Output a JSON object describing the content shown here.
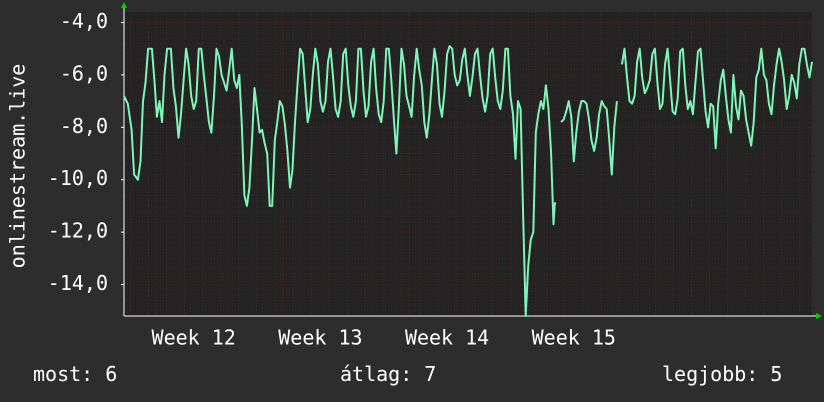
{
  "chart_data": {
    "type": "line",
    "ylabel": "onlinestream.live",
    "xlabel": "",
    "title": "",
    "ylim": [
      -15.2,
      -3.6
    ],
    "xlim": [
      10.55,
      15.98
    ],
    "y_ticks": [
      "-4,0",
      "-6,0",
      "-8,0",
      "-10,0",
      "-12,0",
      "-14,0"
    ],
    "y_tick_values": [
      -4,
      -6,
      -8,
      -10,
      -12,
      -14
    ],
    "x_ticks": [
      "Week 12",
      "Week 13",
      "Week 14",
      "Week 15"
    ],
    "x_tick_values": [
      11.1,
      12.1,
      13.1,
      14.1
    ],
    "grid": true,
    "colors": {
      "background": "#2d2d2d",
      "plot_background": "#232323",
      "line": "#7ff5b8",
      "grid_major": "#5a2020",
      "grid_minor": "#3e2a2a",
      "axis": "#ffffff",
      "arrow": "#00d000"
    },
    "series": [
      {
        "values": [
          [
            10.55,
            -6.8
          ],
          [
            10.58,
            -7.1
          ],
          [
            10.61,
            -8.1
          ],
          [
            10.63,
            -9.8
          ],
          [
            10.66,
            -10.0
          ],
          [
            10.68,
            -9.3
          ],
          [
            10.7,
            -7.0
          ],
          [
            10.72,
            -6.3
          ],
          [
            10.74,
            -5.0
          ],
          [
            10.77,
            -5.0
          ],
          [
            10.79,
            -6.2
          ],
          [
            10.81,
            -7.6
          ],
          [
            10.83,
            -7.0
          ],
          [
            10.85,
            -7.8
          ],
          [
            10.87,
            -6.0
          ],
          [
            10.89,
            -5.0
          ],
          [
            10.92,
            -5.0
          ],
          [
            10.94,
            -6.5
          ],
          [
            10.96,
            -7.2
          ],
          [
            10.98,
            -8.4
          ],
          [
            11.0,
            -7.5
          ],
          [
            11.02,
            -6.2
          ],
          [
            11.04,
            -5.0
          ],
          [
            11.06,
            -5.6
          ],
          [
            11.08,
            -6.8
          ],
          [
            11.1,
            -7.3
          ],
          [
            11.12,
            -7.0
          ],
          [
            11.14,
            -5.0
          ],
          [
            11.16,
            -5.0
          ],
          [
            11.18,
            -6.0
          ],
          [
            11.2,
            -6.9
          ],
          [
            11.22,
            -7.8
          ],
          [
            11.24,
            -8.2
          ],
          [
            11.26,
            -6.8
          ],
          [
            11.28,
            -5.0
          ],
          [
            11.3,
            -5.3
          ],
          [
            11.32,
            -6.0
          ],
          [
            11.34,
            -6.3
          ],
          [
            11.36,
            -6.6
          ],
          [
            11.38,
            -5.8
          ],
          [
            11.4,
            -5.0
          ],
          [
            11.42,
            -6.2
          ],
          [
            11.44,
            -6.5
          ],
          [
            11.46,
            -6.0
          ],
          [
            11.48,
            -7.9
          ],
          [
            11.5,
            -10.6
          ],
          [
            11.52,
            -11.0
          ],
          [
            11.54,
            -10.3
          ],
          [
            11.56,
            -8.5
          ],
          [
            11.58,
            -6.5
          ],
          [
            11.6,
            -7.3
          ],
          [
            11.62,
            -8.2
          ],
          [
            11.64,
            -8.1
          ],
          [
            11.66,
            -8.6
          ],
          [
            11.68,
            -9.0
          ],
          [
            11.7,
            -11.0
          ],
          [
            11.72,
            -11.0
          ],
          [
            11.74,
            -8.5
          ],
          [
            11.76,
            -7.8
          ],
          [
            11.78,
            -7.0
          ],
          [
            11.8,
            -7.2
          ],
          [
            11.82,
            -7.9
          ],
          [
            11.84,
            -8.9
          ],
          [
            11.86,
            -10.3
          ],
          [
            11.88,
            -9.6
          ],
          [
            11.9,
            -7.8
          ],
          [
            11.92,
            -6.3
          ],
          [
            11.94,
            -5.0
          ],
          [
            11.96,
            -5.2
          ],
          [
            11.98,
            -6.5
          ],
          [
            12.0,
            -7.8
          ],
          [
            12.02,
            -7.3
          ],
          [
            12.04,
            -6.0
          ],
          [
            12.06,
            -5.0
          ],
          [
            12.08,
            -5.6
          ],
          [
            12.1,
            -7.0
          ],
          [
            12.12,
            -7.4
          ],
          [
            12.14,
            -7.0
          ],
          [
            12.16,
            -5.5
          ],
          [
            12.18,
            -5.0
          ],
          [
            12.2,
            -6.1
          ],
          [
            12.22,
            -7.3
          ],
          [
            12.24,
            -7.6
          ],
          [
            12.26,
            -7.0
          ],
          [
            12.28,
            -5.2
          ],
          [
            12.3,
            -5.0
          ],
          [
            12.32,
            -6.4
          ],
          [
            12.34,
            -7.2
          ],
          [
            12.36,
            -7.6
          ],
          [
            12.38,
            -7.0
          ],
          [
            12.4,
            -5.0
          ],
          [
            12.42,
            -5.0
          ],
          [
            12.44,
            -6.6
          ],
          [
            12.46,
            -7.6
          ],
          [
            12.48,
            -7.2
          ],
          [
            12.5,
            -5.5
          ],
          [
            12.52,
            -5.0
          ],
          [
            12.54,
            -6.5
          ],
          [
            12.56,
            -7.5
          ],
          [
            12.58,
            -7.8
          ],
          [
            12.6,
            -7.0
          ],
          [
            12.62,
            -5.0
          ],
          [
            12.64,
            -5.0
          ],
          [
            12.66,
            -6.2
          ],
          [
            12.68,
            -7.7
          ],
          [
            12.7,
            -9.0
          ],
          [
            12.72,
            -7.2
          ],
          [
            12.74,
            -5.0
          ],
          [
            12.76,
            -5.6
          ],
          [
            12.78,
            -6.8
          ],
          [
            12.8,
            -7.2
          ],
          [
            12.82,
            -7.6
          ],
          [
            12.84,
            -6.0
          ],
          [
            12.86,
            -5.0
          ],
          [
            12.88,
            -5.8
          ],
          [
            12.9,
            -6.4
          ],
          [
            12.92,
            -7.8
          ],
          [
            12.94,
            -8.4
          ],
          [
            12.96,
            -7.5
          ],
          [
            12.98,
            -6.2
          ],
          [
            13.0,
            -5.0
          ],
          [
            13.02,
            -5.6
          ],
          [
            13.04,
            -7.1
          ],
          [
            13.06,
            -7.6
          ],
          [
            13.08,
            -6.6
          ],
          [
            13.1,
            -5.2
          ],
          [
            13.12,
            -4.9
          ],
          [
            13.14,
            -5.0
          ],
          [
            13.16,
            -6.0
          ],
          [
            13.18,
            -6.4
          ],
          [
            13.2,
            -6.2
          ],
          [
            13.22,
            -5.4
          ],
          [
            13.24,
            -5.0
          ],
          [
            13.26,
            -6.0
          ],
          [
            13.28,
            -6.8
          ],
          [
            13.3,
            -6.1
          ],
          [
            13.32,
            -5.2
          ],
          [
            13.34,
            -5.0
          ],
          [
            13.36,
            -6.0
          ],
          [
            13.38,
            -6.9
          ],
          [
            13.4,
            -7.4
          ],
          [
            13.42,
            -6.8
          ],
          [
            13.44,
            -5.2
          ],
          [
            13.46,
            -5.0
          ],
          [
            13.48,
            -6.1
          ],
          [
            13.5,
            -7.0
          ],
          [
            13.52,
            -7.3
          ],
          [
            13.54,
            -6.6
          ],
          [
            13.56,
            -5.0
          ],
          [
            13.58,
            -5.0
          ],
          [
            13.6,
            -6.8
          ],
          [
            13.62,
            -7.5
          ],
          [
            13.64,
            -9.2
          ],
          [
            13.66,
            -7.0
          ],
          [
            13.68,
            -7.3
          ],
          [
            13.7,
            -11.3
          ],
          [
            13.72,
            -15.2
          ],
          [
            13.74,
            -13.3
          ],
          [
            13.76,
            -12.3
          ],
          [
            13.78,
            -12.0
          ],
          [
            13.8,
            -8.2
          ],
          [
            13.82,
            -7.5
          ],
          [
            13.84,
            -7.0
          ],
          [
            13.86,
            -7.3
          ],
          [
            13.88,
            -6.4
          ],
          [
            13.9,
            -7.3
          ],
          [
            13.92,
            -8.9
          ],
          [
            13.94,
            -11.7
          ],
          [
            13.95,
            -10.9
          ],
          [
            13.96,
            -10.9
          ],
          [
            13.98,
            null
          ],
          [
            14.0,
            -7.8
          ],
          [
            14.02,
            -7.7
          ],
          [
            14.04,
            -7.4
          ],
          [
            14.06,
            -7.0
          ],
          [
            14.08,
            -7.6
          ],
          [
            14.1,
            -9.3
          ],
          [
            14.12,
            -8.2
          ],
          [
            14.14,
            -7.4
          ],
          [
            14.16,
            -7.0
          ],
          [
            14.18,
            -7.0
          ],
          [
            14.2,
            -7.1
          ],
          [
            14.22,
            -7.7
          ],
          [
            14.24,
            -8.5
          ],
          [
            14.26,
            -8.9
          ],
          [
            14.28,
            -8.4
          ],
          [
            14.3,
            -7.5
          ],
          [
            14.32,
            -7.0
          ],
          [
            14.34,
            -7.2
          ],
          [
            14.36,
            -7.3
          ],
          [
            14.38,
            -8.5
          ],
          [
            14.4,
            -9.8
          ],
          [
            14.42,
            -8.0
          ],
          [
            14.44,
            -7.0
          ],
          [
            14.46,
            null
          ],
          [
            14.48,
            -5.6
          ],
          [
            14.5,
            -5.0
          ],
          [
            14.52,
            -6.1
          ],
          [
            14.54,
            -7.0
          ],
          [
            14.56,
            -7.1
          ],
          [
            14.58,
            -6.8
          ],
          [
            14.6,
            -5.5
          ],
          [
            14.62,
            -5.0
          ],
          [
            14.64,
            -6.1
          ],
          [
            14.66,
            -6.7
          ],
          [
            14.68,
            -6.5
          ],
          [
            14.7,
            -6.2
          ],
          [
            14.72,
            -5.2
          ],
          [
            14.74,
            -5.0
          ],
          [
            14.76,
            -6.3
          ],
          [
            14.78,
            -7.3
          ],
          [
            14.8,
            -7.1
          ],
          [
            14.82,
            -5.6
          ],
          [
            14.84,
            -5.0
          ],
          [
            14.86,
            -6.2
          ],
          [
            14.88,
            -7.4
          ],
          [
            14.9,
            -7.5
          ],
          [
            14.92,
            -6.9
          ],
          [
            14.94,
            -5.1
          ],
          [
            14.96,
            -5.0
          ],
          [
            14.98,
            -6.4
          ],
          [
            15.0,
            -7.3
          ],
          [
            15.02,
            -7.0
          ],
          [
            15.04,
            -7.5
          ],
          [
            15.06,
            -6.3
          ],
          [
            15.08,
            -5.1
          ],
          [
            15.1,
            -5.0
          ],
          [
            15.12,
            -6.2
          ],
          [
            15.14,
            -7.4
          ],
          [
            15.16,
            -8.0
          ],
          [
            15.18,
            -7.1
          ],
          [
            15.2,
            -7.2
          ],
          [
            15.22,
            -8.8
          ],
          [
            15.24,
            -7.1
          ],
          [
            15.26,
            -6.2
          ],
          [
            15.28,
            -5.8
          ],
          [
            15.3,
            -6.8
          ],
          [
            15.32,
            -7.7
          ],
          [
            15.34,
            -8.2
          ],
          [
            15.36,
            -6.0
          ],
          [
            15.38,
            -7.2
          ],
          [
            15.4,
            -7.7
          ],
          [
            15.42,
            -6.6
          ],
          [
            15.44,
            -6.8
          ],
          [
            15.46,
            -7.7
          ],
          [
            15.48,
            -8.2
          ],
          [
            15.5,
            -8.7
          ],
          [
            15.52,
            -7.8
          ],
          [
            15.54,
            -6.1
          ],
          [
            15.56,
            -5.8
          ],
          [
            15.58,
            -5.0
          ],
          [
            15.6,
            -6.0
          ],
          [
            15.62,
            -6.2
          ],
          [
            15.64,
            -7.1
          ],
          [
            15.66,
            -7.5
          ],
          [
            15.68,
            -6.4
          ],
          [
            15.7,
            -5.6
          ],
          [
            15.72,
            -5.0
          ],
          [
            15.74,
            -5.5
          ],
          [
            15.76,
            -6.2
          ],
          [
            15.78,
            -7.3
          ],
          [
            15.8,
            -6.8
          ],
          [
            15.82,
            -6.0
          ],
          [
            15.84,
            -6.3
          ],
          [
            15.86,
            -6.9
          ],
          [
            15.88,
            -5.6
          ],
          [
            15.9,
            -5.0
          ],
          [
            15.92,
            -5.0
          ],
          [
            15.94,
            -5.6
          ],
          [
            15.96,
            -6.1
          ],
          [
            15.98,
            -5.5
          ]
        ]
      }
    ]
  },
  "stats": {
    "current": "most: 6",
    "average": "átlag: 7",
    "max": "legjobb: 5"
  }
}
